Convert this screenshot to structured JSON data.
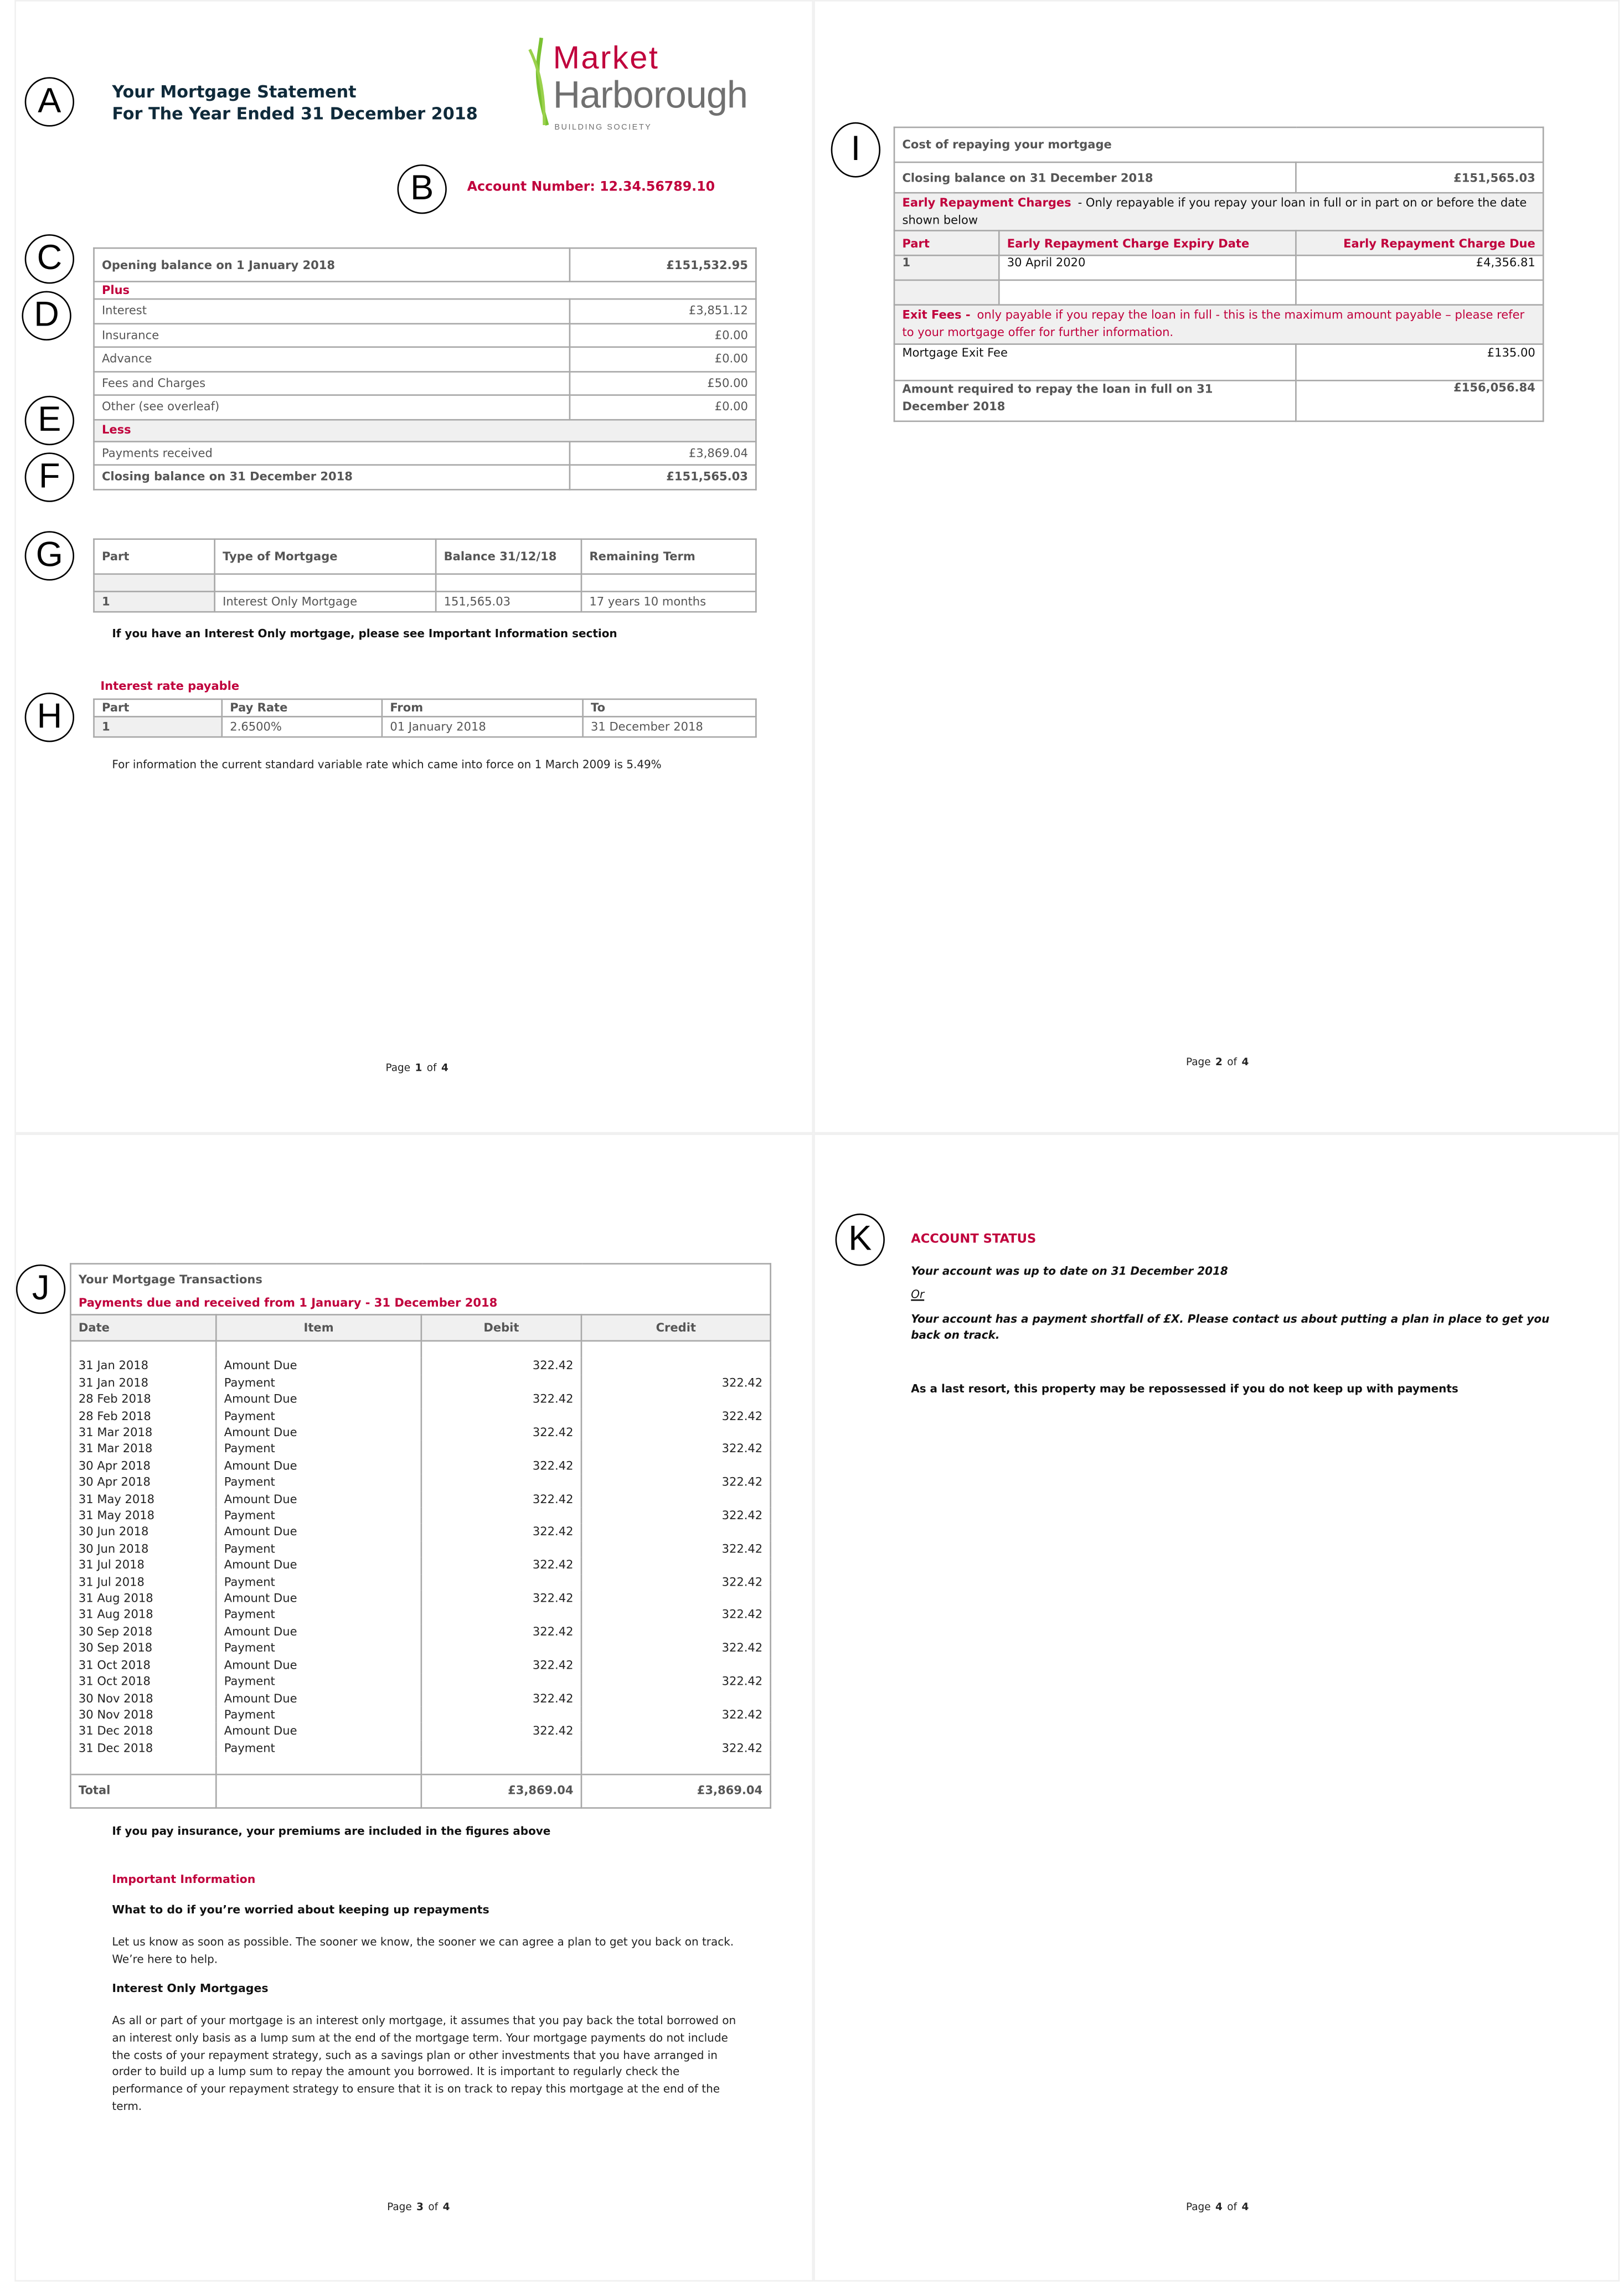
{
  "callouts": [
    "A",
    "B",
    "C",
    "D",
    "E",
    "F",
    "G",
    "H",
    "I",
    "J",
    "K"
  ],
  "header": {
    "title_line1": "Your Mortgage Statement",
    "title_line2": "For The Year Ended 31 December 2018",
    "account_number": "Account Number: 12.34.56789.10"
  },
  "logo": {
    "line1": "Market",
    "line2": "Harborough",
    "line3": "BUILDING SOCIETY",
    "colors": {
      "market": "#c0003c",
      "harborough": "#707070",
      "stalk": "#7ac231"
    }
  },
  "balance_summary": {
    "opening_label": "Opening balance on 1 January 2018",
    "opening_value": "£151,532.95",
    "plus_label": "Plus",
    "plus_rows": [
      {
        "label": "Interest",
        "value": "£3,851.12"
      },
      {
        "label": "Insurance",
        "value": "£0.00"
      },
      {
        "label": "Advance",
        "value": "£0.00"
      },
      {
        "label": "Fees and Charges",
        "value": "£50.00"
      },
      {
        "label": "Other (see overleaf)",
        "value": "£0.00"
      }
    ],
    "less_label": "Less",
    "payments_label": "Payments received",
    "payments_value": "£3,869.04",
    "closing_label": "Closing balance on 31 December 2018",
    "closing_value": "£151,565.03"
  },
  "mortgage_parts": {
    "headers": [
      "Part",
      "Type of Mortgage",
      "Balance 31/12/18",
      "Remaining Term"
    ],
    "row": [
      "1",
      "Interest Only Mortgage",
      "151,565.03",
      "17 years 10 months"
    ],
    "note": "If you have an Interest Only mortgage, please see Important Information section"
  },
  "interest_rate": {
    "title": "Interest rate payable",
    "headers": [
      "Part",
      "Pay Rate",
      "From",
      "To"
    ],
    "row": [
      "1",
      "2.6500%",
      "01 January 2018",
      "31 December 2018"
    ],
    "info": "For information the current standard variable rate which came into force on 1 March 2009 is 5.49%"
  },
  "pages": {
    "p1": [
      "Page ",
      "1",
      " of ",
      "4"
    ],
    "p2": [
      "Page ",
      "2",
      " of ",
      "4"
    ],
    "p3": [
      "Page ",
      "3",
      " of ",
      "4"
    ],
    "p4": [
      "Page ",
      "4",
      " of ",
      "4"
    ]
  },
  "repay_cost": {
    "title": "Cost of repaying your mortgage",
    "closing_label": "Closing balance on 31 December 2018",
    "closing_value": "£151,565.03",
    "erc_title": "Early Repayment Charges",
    "erc_text": " - Only repayable if you repay your loan in full or in part on or before the date shown below",
    "erc_headers": [
      "Part",
      "Early Repayment Charge Expiry Date",
      "Early Repayment Charge Due"
    ],
    "erc_row": [
      "1",
      "30 April 2020",
      "£4,356.81"
    ],
    "exit_title": "Exit Fees -",
    "exit_text": " only payable if you repay the loan in full - this is the maximum amount payable – please refer to your mortgage offer for further information.",
    "exit_label": "Mortgage Exit Fee",
    "exit_value": "£135.00",
    "amount_label": "Amount required to repay the loan in full on 31 December 2018",
    "amount_value": "£156,056.84"
  },
  "transactions": {
    "title": "Your Mortgage Transactions",
    "subtitle": "Payments due and received from 1 January - 31 December 2018",
    "headers": [
      "Date",
      "Item",
      "Debit",
      "Credit"
    ],
    "rows": [
      {
        "date": "31 Jan 2018",
        "item": "Amount Due",
        "debit": "322.42",
        "credit": ""
      },
      {
        "date": "31 Jan 2018",
        "item": "Payment",
        "debit": "",
        "credit": "322.42"
      },
      {
        "date": "28 Feb 2018",
        "item": "Amount Due",
        "debit": "322.42",
        "credit": ""
      },
      {
        "date": "28 Feb 2018",
        "item": "Payment",
        "debit": "",
        "credit": "322.42"
      },
      {
        "date": "31 Mar 2018",
        "item": "Amount Due",
        "debit": "322.42",
        "credit": ""
      },
      {
        "date": "31 Mar 2018",
        "item": "Payment",
        "debit": "",
        "credit": "322.42"
      },
      {
        "date": "30 Apr 2018",
        "item": "Amount Due",
        "debit": "322.42",
        "credit": ""
      },
      {
        "date": "30 Apr 2018",
        "item": "Payment",
        "debit": "",
        "credit": "322.42"
      },
      {
        "date": "31 May 2018",
        "item": "Amount Due",
        "debit": "322.42",
        "credit": ""
      },
      {
        "date": "31 May 2018",
        "item": "Payment",
        "debit": "",
        "credit": "322.42"
      },
      {
        "date": "30 Jun 2018",
        "item": "Amount Due",
        "debit": "322.42",
        "credit": ""
      },
      {
        "date": "30 Jun 2018",
        "item": "Payment",
        "debit": "",
        "credit": "322.42"
      },
      {
        "date": "31 Jul 2018",
        "item": "Amount Due",
        "debit": "322.42",
        "credit": ""
      },
      {
        "date": "31 Jul 2018",
        "item": "Payment",
        "debit": "",
        "credit": "322.42"
      },
      {
        "date": "31 Aug 2018",
        "item": "Amount Due",
        "debit": "322.42",
        "credit": ""
      },
      {
        "date": "31 Aug 2018",
        "item": "Payment",
        "debit": "",
        "credit": "322.42"
      },
      {
        "date": "30 Sep 2018",
        "item": "Amount Due",
        "debit": "322.42",
        "credit": ""
      },
      {
        "date": "30 Sep 2018",
        "item": "Payment",
        "debit": "",
        "credit": "322.42"
      },
      {
        "date": "31 Oct 2018",
        "item": "Amount Due",
        "debit": "322.42",
        "credit": ""
      },
      {
        "date": "31 Oct 2018",
        "item": "Payment",
        "debit": "",
        "credit": "322.42"
      },
      {
        "date": "30 Nov 2018",
        "item": "Amount Due",
        "debit": "322.42",
        "credit": ""
      },
      {
        "date": "30 Nov 2018",
        "item": "Payment",
        "debit": "",
        "credit": "322.42"
      },
      {
        "date": "31 Dec 2018",
        "item": "Amount Due",
        "debit": "322.42",
        "credit": ""
      },
      {
        "date": "31 Dec 2018",
        "item": "Payment",
        "debit": "",
        "credit": "322.42"
      }
    ],
    "total_label": "Total",
    "total_debit": "£3,869.04",
    "total_credit": "£3,869.04",
    "insurance_note": "If you pay insurance, your premiums are included in the figures above"
  },
  "important": {
    "title": "Important Information",
    "h1": "What to do if you’re worried about keeping up repayments",
    "p1": "Let us know as soon as possible.  The sooner we know, the sooner we can agree a plan to get you back on track.  We’re here to help.",
    "h2": "Interest Only Mortgages",
    "p2": "As all or part of your mortgage is an interest only mortgage, it assumes that you pay back the total borrowed on an interest only basis as a lump sum at the end of the mortgage term.  Your mortgage payments do not include the costs of your repayment strategy, such as a savings plan or other investments that you have arranged in order to build up a lump sum to repay the amount you borrowed.  It is important to regularly check the performance of your repayment strategy to ensure that it is on track to repay this mortgage at the end of the term."
  },
  "account_status": {
    "title": "ACCOUNT STATUS",
    "up_to_date": "Your account was up to date on 31 December 2018",
    "or": "Or",
    "shortfall": "Your account has a payment shortfall of £X.  Please contact us about putting a plan in place to get you back on track.",
    "warning": "As a last resort, this property may be repossessed if you do not keep up with payments"
  }
}
